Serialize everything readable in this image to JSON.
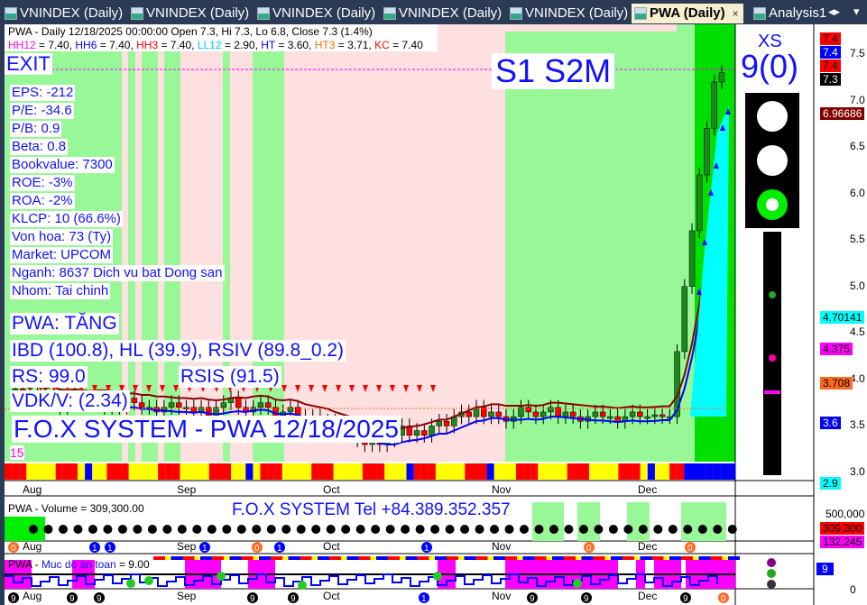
{
  "tabs": [
    {
      "label": "VNINDEX (Daily)"
    },
    {
      "label": "VNINDEX (Daily)"
    },
    {
      "label": "VNINDEX (Daily)"
    },
    {
      "label": "VNINDEX (Daily)"
    },
    {
      "label": "VNINDEX (Daily)"
    },
    {
      "label": "PWA (Daily)",
      "active": true
    },
    {
      "label": "Analysis1"
    }
  ],
  "tab_close": "×",
  "header": {
    "line1": "PWA - Daily 12/18/2025 00:00:00 Open 7.3, Hi 7.3, Lo 6.8, Close 7.3 (1.4%)",
    "indicators": [
      {
        "name": "HH12",
        "value": " = 7.40, ",
        "color": "#ff00ff"
      },
      {
        "name": "HH6",
        "value": " = 7.40, ",
        "color": "#0000ff"
      },
      {
        "name": "HH3",
        "value": " = 7.40, ",
        "color": "#ff0000"
      },
      {
        "name": "LL12",
        "value": " = 2.90, ",
        "color": "#00c8ff"
      },
      {
        "name": "HT",
        "value": "  = 3.60, ",
        "color": "#0000ff"
      },
      {
        "name": "HT3",
        "value": "  = 3.71, ",
        "color": "#ff6a00"
      },
      {
        "name": "KC",
        "value": " = 7.40",
        "color": "#ff0000"
      }
    ]
  },
  "signals": {
    "exit": "EXIT",
    "s1": "S1",
    "s2m": "S2M",
    "xs": "XS",
    "xs_count": "9(0)"
  },
  "fundamentals": [
    "EPS: -212",
    "P/E: -34.6",
    "P/B: 0.9",
    "Beta: 0.8",
    "Bookvalue: 7300",
    "ROE: -3%",
    "ROA: -2%",
    "KLCP: 10 (66.6%)",
    "Von hoa: 73 (Ty)",
    "Market: UPCOM",
    "Nganh: 8637 Dich vu bat Dong san",
    "Nhom: Tai chinh"
  ],
  "status": {
    "trend": "PWA: TĂNG",
    "ratings": "IBD (100.8), HL (39.9), RSIV (89.8_0.2)",
    "rs": "RS: 99.0",
    "rsis": "RSIS (91.5)",
    "vdkv": "VDK/V:  (2.34)",
    "watermark": "F.O.X SYSTEM - PWA 12/18/2025",
    "count": "15"
  },
  "x_axis": [
    "Aug",
    "Sep",
    "Oct",
    "Nov",
    "Dec"
  ],
  "price_axis": {
    "ticks": [
      "7.5",
      "7.0",
      "6.5",
      "6.0",
      "5.5",
      "5.0",
      "4.5",
      "4.0",
      "3.5",
      "3.0"
    ],
    "tags": [
      {
        "v": "7.4",
        "c": "#ff0000",
        "t": "#000"
      },
      {
        "v": "7.4",
        "c": "#0000ff",
        "t": "#fff"
      },
      {
        "v": "7.4",
        "c": "#ff0000",
        "t": "#000"
      },
      {
        "v": "7.3",
        "c": "#000000",
        "t": "#fff"
      },
      {
        "v": "6.96686",
        "c": "#800000",
        "t": "#fff"
      },
      {
        "v": "4.70141",
        "c": "#00ffff",
        "t": "#000"
      },
      {
        "v": "4.375",
        "c": "#ff00ff",
        "t": "#000"
      },
      {
        "v": "3.708",
        "c": "#ff6a20",
        "t": "#000"
      },
      {
        "v": "3.6",
        "c": "#0000ff",
        "t": "#fff"
      },
      {
        "v": "2.9",
        "c": "#00ffff",
        "t": "#000"
      }
    ]
  },
  "price_series": [
    3.9,
    3.85,
    3.8,
    3.85,
    3.8,
    3.75,
    3.7,
    3.8,
    3.85,
    3.8,
    3.75,
    3.8,
    3.7,
    3.75,
    3.7,
    3.8,
    3.75,
    3.7,
    3.7,
    3.65,
    3.7,
    3.75,
    3.7,
    3.7,
    3.65,
    3.7,
    3.6,
    3.7,
    3.75,
    3.8,
    3.7,
    3.65,
    3.7,
    3.75,
    3.7,
    3.6,
    3.65,
    3.7,
    3.6,
    3.55,
    3.6,
    3.5,
    3.55,
    3.5,
    3.45,
    3.4,
    3.35,
    3.3,
    3.4,
    3.3,
    3.35,
    3.4,
    3.5,
    3.4,
    3.45,
    3.4,
    3.5,
    3.55,
    3.5,
    3.6,
    3.65,
    3.6,
    3.7,
    3.6,
    3.65,
    3.6,
    3.55,
    3.6,
    3.7,
    3.65,
    3.6,
    3.65,
    3.7,
    3.6,
    3.65,
    3.6,
    3.55,
    3.6,
    3.65,
    3.6,
    3.6,
    3.55,
    3.6,
    3.65,
    3.6,
    3.6,
    3.62,
    3.6,
    3.6,
    4.3,
    5.0,
    5.6,
    6.2,
    6.7,
    7.2,
    7.3
  ],
  "volume": {
    "label": "PWA - Volume = 309,300.00",
    "contact": "F.O.X SYSTEM Tel +84.389.352.357",
    "ticks": [
      "500,000"
    ],
    "tags": [
      {
        "v": "309,300",
        "c": "#ff0000",
        "t": "#000"
      },
      {
        "v": "132,245",
        "c": "#ff00ff",
        "t": "#000"
      }
    ]
  },
  "safety": {
    "label_prefix": "PWA - ",
    "label_name": "Muc do an toan",
    "label_value": " = 9.00",
    "tag": "9",
    "tick": "0"
  }
}
